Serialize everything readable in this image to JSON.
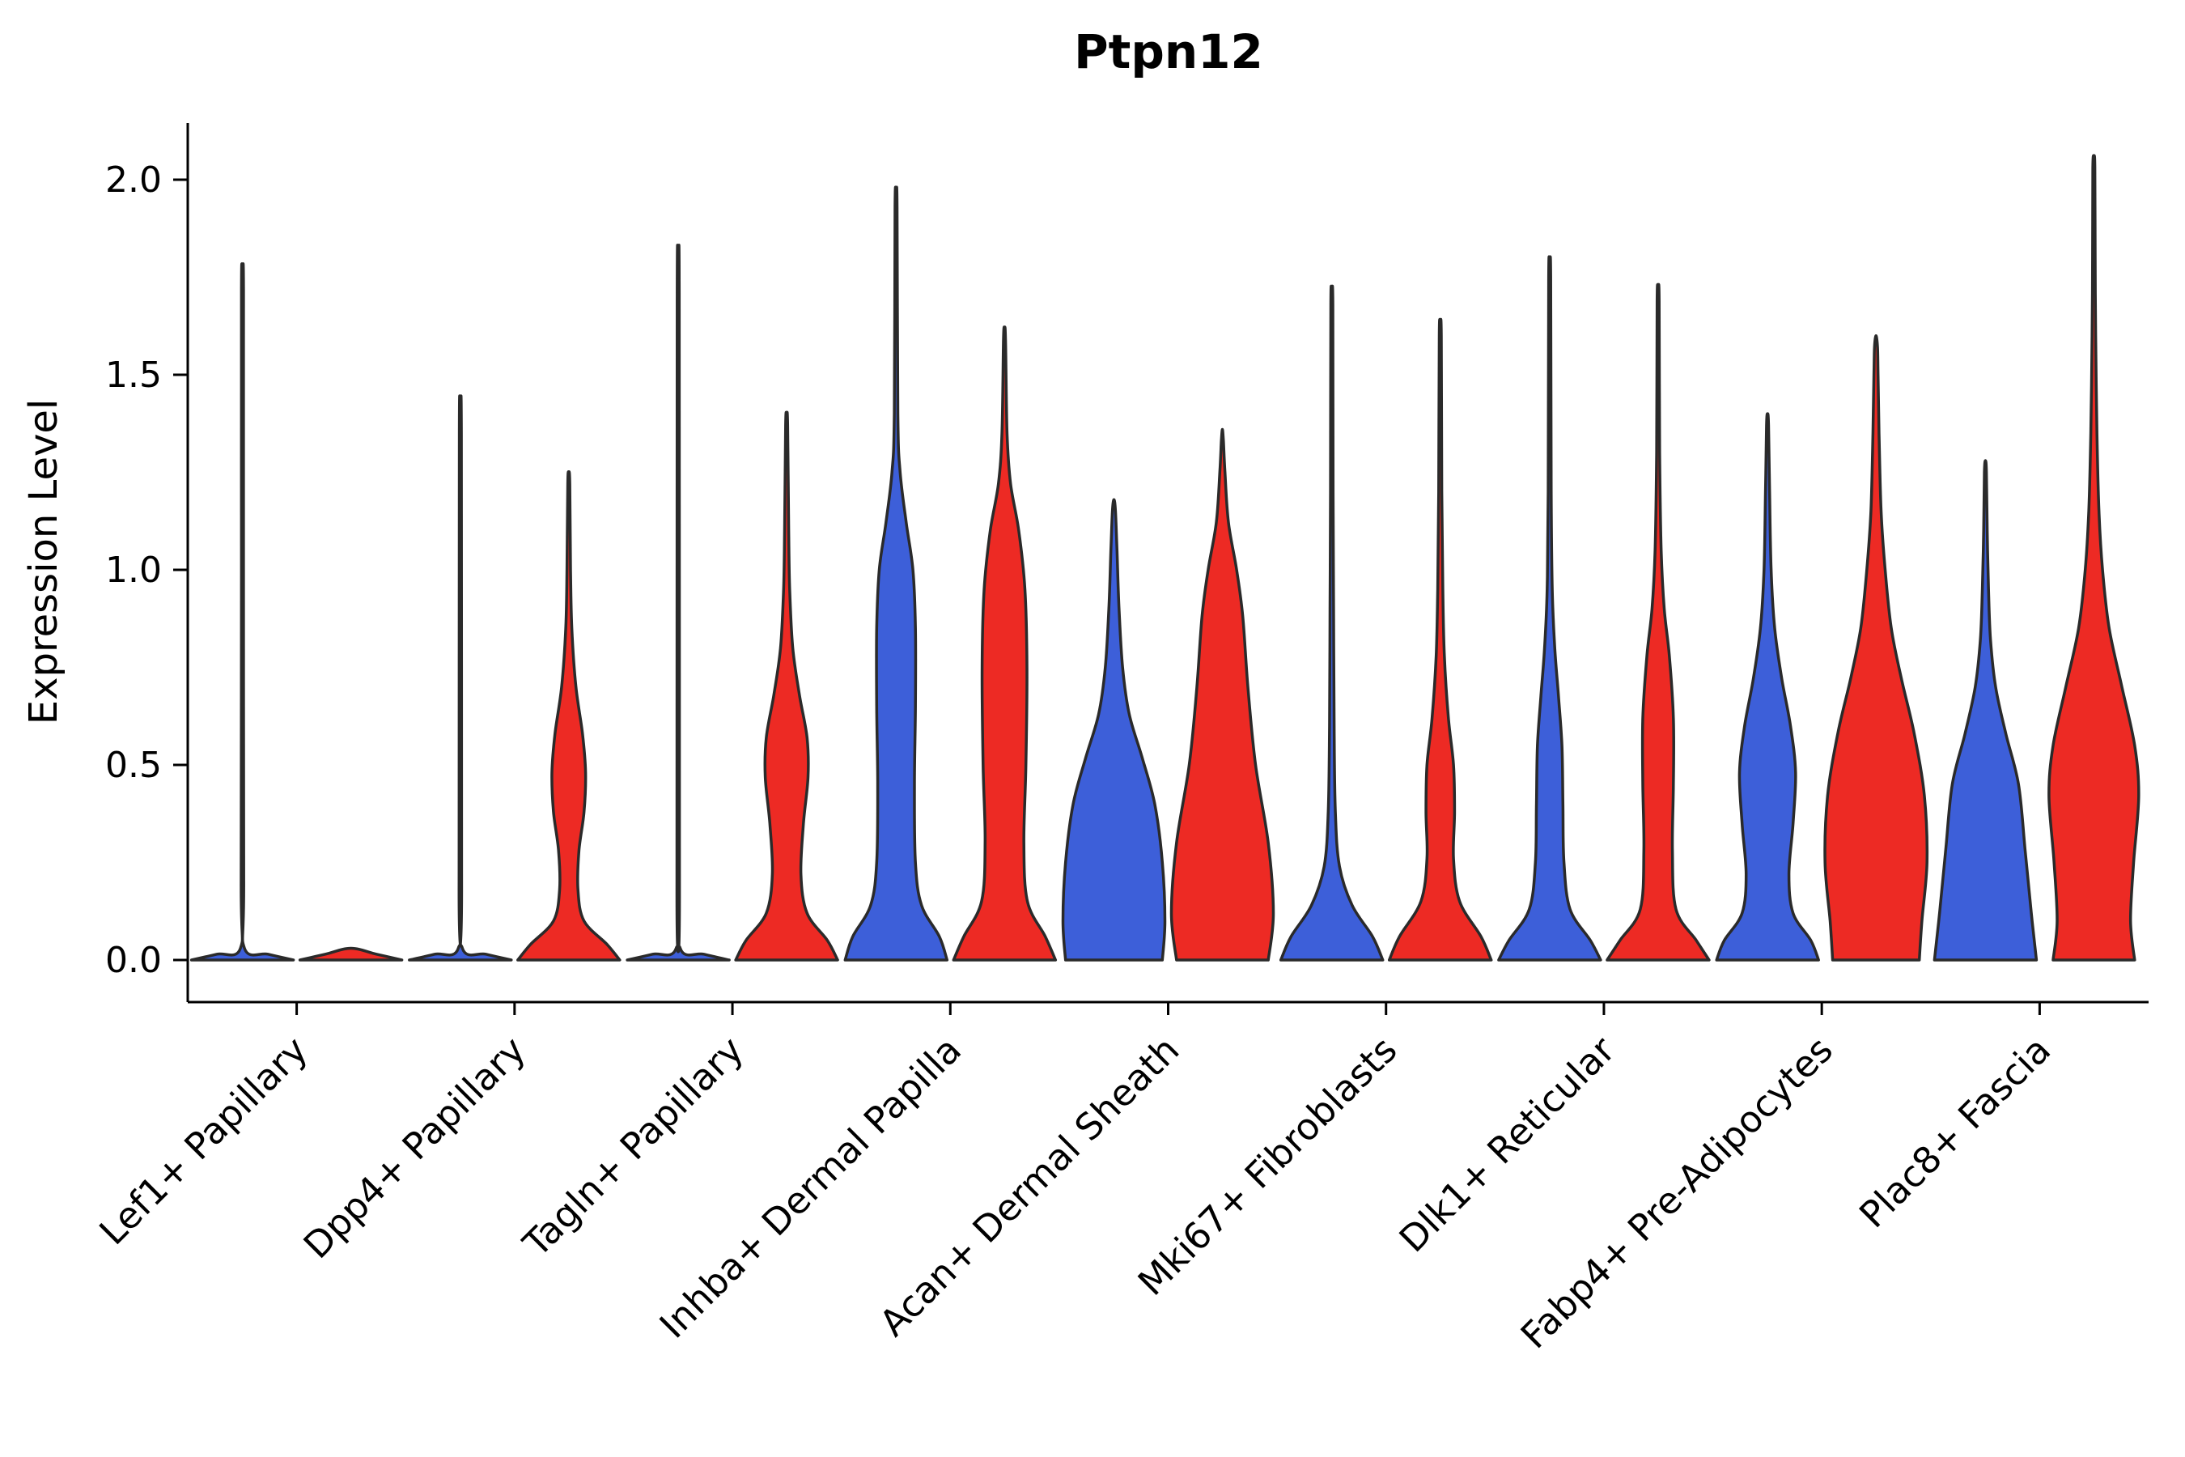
{
  "chart_data": {
    "type": "violin",
    "title": "Ptpn12",
    "ylabel": "Expression Level",
    "ylim": [
      0,
      2.1
    ],
    "yticks": [
      "0.0",
      "0.5",
      "1.0",
      "1.5",
      "2.0"
    ],
    "ytick_values": [
      0.0,
      0.5,
      1.0,
      1.5,
      2.0
    ],
    "grid": false,
    "legend": "none",
    "categories": [
      "Lef1+ Papillary",
      "Dpp4+ Papillary",
      "Tagln+ Papillary",
      "Inhba+ Dermal Papilla",
      "Acan+ Dermal Sheath",
      "Mki67+ Fibroblasts",
      "Dlk1+ Reticular",
      "Fabp4+ Pre-Adipocytes",
      "Plac8+ Fascia"
    ],
    "series": [
      {
        "name": "blue",
        "color": "#3D5FD9",
        "violins": [
          {
            "max": 1.75,
            "profile": [
              [
                0,
                1
              ],
              [
                0.015,
                0.5
              ],
              [
                0.03,
                0.04
              ],
              [
                0.2,
                0.025
              ],
              [
                1.0,
                0.02
              ],
              [
                1.72,
                0.02
              ],
              [
                1.75,
                0
              ]
            ]
          },
          {
            "max": 1.38,
            "profile": [
              [
                0,
                1
              ],
              [
                0.015,
                0.5
              ],
              [
                0.03,
                0.04
              ],
              [
                0.2,
                0.025
              ],
              [
                1.35,
                0.02
              ],
              [
                1.38,
                0
              ]
            ]
          },
          {
            "max": 1.74,
            "profile": [
              [
                0,
                1
              ],
              [
                0.015,
                0.5
              ],
              [
                0.03,
                0.04
              ],
              [
                0.2,
                0.025
              ],
              [
                1.71,
                0.02
              ],
              [
                1.74,
                0
              ]
            ]
          },
          {
            "max": 1.96,
            "profile": [
              [
                0,
                1
              ],
              [
                0.06,
                0.85
              ],
              [
                0.14,
                0.5
              ],
              [
                0.25,
                0.38
              ],
              [
                0.45,
                0.36
              ],
              [
                0.65,
                0.38
              ],
              [
                0.85,
                0.38
              ],
              [
                1.0,
                0.33
              ],
              [
                1.12,
                0.2
              ],
              [
                1.25,
                0.08
              ],
              [
                1.4,
                0.035
              ],
              [
                1.93,
                0.02
              ],
              [
                1.96,
                0
              ]
            ]
          },
          {
            "max": 1.18,
            "profile": [
              [
                0,
                0.95
              ],
              [
                0.1,
                1
              ],
              [
                0.25,
                0.95
              ],
              [
                0.4,
                0.8
              ],
              [
                0.52,
                0.55
              ],
              [
                0.63,
                0.3
              ],
              [
                0.75,
                0.17
              ],
              [
                0.9,
                0.1
              ],
              [
                1.05,
                0.06
              ],
              [
                1.15,
                0.03
              ],
              [
                1.18,
                0
              ]
            ]
          },
          {
            "max": 1.71,
            "profile": [
              [
                0,
                1
              ],
              [
                0.06,
                0.8
              ],
              [
                0.14,
                0.4
              ],
              [
                0.24,
                0.15
              ],
              [
                0.38,
                0.07
              ],
              [
                0.6,
                0.045
              ],
              [
                0.9,
                0.035
              ],
              [
                1.2,
                0.025
              ],
              [
                1.68,
                0.02
              ],
              [
                1.71,
                0
              ]
            ]
          },
          {
            "max": 1.78,
            "profile": [
              [
                0,
                1
              ],
              [
                0.05,
                0.8
              ],
              [
                0.13,
                0.4
              ],
              [
                0.25,
                0.28
              ],
              [
                0.4,
                0.26
              ],
              [
                0.55,
                0.24
              ],
              [
                0.68,
                0.17
              ],
              [
                0.8,
                0.1
              ],
              [
                0.95,
                0.05
              ],
              [
                1.2,
                0.03
              ],
              [
                1.75,
                0.02
              ],
              [
                1.78,
                0
              ]
            ]
          },
          {
            "max": 1.4,
            "profile": [
              [
                0,
                1
              ],
              [
                0.05,
                0.85
              ],
              [
                0.12,
                0.5
              ],
              [
                0.22,
                0.42
              ],
              [
                0.35,
                0.5
              ],
              [
                0.48,
                0.55
              ],
              [
                0.6,
                0.45
              ],
              [
                0.72,
                0.28
              ],
              [
                0.85,
                0.14
              ],
              [
                1.0,
                0.07
              ],
              [
                1.2,
                0.04
              ],
              [
                1.37,
                0.02
              ],
              [
                1.4,
                0
              ]
            ]
          },
          {
            "max": 1.28,
            "profile": [
              [
                0,
                1
              ],
              [
                0.12,
                0.9
              ],
              [
                0.28,
                0.78
              ],
              [
                0.45,
                0.65
              ],
              [
                0.58,
                0.4
              ],
              [
                0.7,
                0.2
              ],
              [
                0.82,
                0.1
              ],
              [
                0.95,
                0.06
              ],
              [
                1.1,
                0.035
              ],
              [
                1.25,
                0.02
              ],
              [
                1.28,
                0
              ]
            ]
          }
        ]
      },
      {
        "name": "red",
        "color": "#ED2A24",
        "violins": [
          {
            "max": 0.03,
            "profile": [
              [
                0,
                1
              ],
              [
                0.015,
                0.5
              ],
              [
                0.03,
                0
              ]
            ]
          },
          {
            "max": 1.25,
            "profile": [
              [
                0,
                1
              ],
              [
                0.04,
                0.75
              ],
              [
                0.1,
                0.3
              ],
              [
                0.18,
                0.18
              ],
              [
                0.28,
                0.2
              ],
              [
                0.38,
                0.3
              ],
              [
                0.48,
                0.33
              ],
              [
                0.58,
                0.27
              ],
              [
                0.7,
                0.14
              ],
              [
                0.85,
                0.06
              ],
              [
                1.0,
                0.035
              ],
              [
                1.22,
                0.02
              ],
              [
                1.25,
                0
              ]
            ]
          },
          {
            "max": 1.4,
            "profile": [
              [
                0,
                1
              ],
              [
                0.05,
                0.8
              ],
              [
                0.12,
                0.4
              ],
              [
                0.22,
                0.28
              ],
              [
                0.35,
                0.33
              ],
              [
                0.47,
                0.42
              ],
              [
                0.57,
                0.4
              ],
              [
                0.68,
                0.25
              ],
              [
                0.8,
                0.12
              ],
              [
                0.95,
                0.06
              ],
              [
                1.1,
                0.04
              ],
              [
                1.37,
                0.02
              ],
              [
                1.4,
                0
              ]
            ]
          },
          {
            "max": 1.62,
            "profile": [
              [
                0,
                1
              ],
              [
                0.06,
                0.8
              ],
              [
                0.15,
                0.45
              ],
              [
                0.3,
                0.38
              ],
              [
                0.5,
                0.42
              ],
              [
                0.75,
                0.44
              ],
              [
                0.95,
                0.4
              ],
              [
                1.1,
                0.28
              ],
              [
                1.22,
                0.12
              ],
              [
                1.35,
                0.05
              ],
              [
                1.59,
                0.02
              ],
              [
                1.62,
                0
              ]
            ]
          },
          {
            "max": 1.36,
            "profile": [
              [
                0,
                0.9
              ],
              [
                0.12,
                1
              ],
              [
                0.3,
                0.9
              ],
              [
                0.5,
                0.65
              ],
              [
                0.7,
                0.5
              ],
              [
                0.88,
                0.4
              ],
              [
                1.0,
                0.28
              ],
              [
                1.12,
                0.12
              ],
              [
                1.25,
                0.05
              ],
              [
                1.33,
                0.02
              ],
              [
                1.36,
                0
              ]
            ]
          },
          {
            "max": 1.63,
            "profile": [
              [
                0,
                1
              ],
              [
                0.06,
                0.8
              ],
              [
                0.15,
                0.38
              ],
              [
                0.26,
                0.26
              ],
              [
                0.38,
                0.28
              ],
              [
                0.5,
                0.26
              ],
              [
                0.62,
                0.16
              ],
              [
                0.78,
                0.08
              ],
              [
                0.95,
                0.05
              ],
              [
                1.2,
                0.03
              ],
              [
                1.6,
                0.02
              ],
              [
                1.63,
                0
              ]
            ]
          },
          {
            "max": 1.72,
            "profile": [
              [
                0,
                1
              ],
              [
                0.05,
                0.75
              ],
              [
                0.13,
                0.35
              ],
              [
                0.28,
                0.28
              ],
              [
                0.45,
                0.3
              ],
              [
                0.62,
                0.3
              ],
              [
                0.78,
                0.22
              ],
              [
                0.9,
                0.12
              ],
              [
                1.05,
                0.06
              ],
              [
                1.3,
                0.03
              ],
              [
                1.69,
                0.02
              ],
              [
                1.72,
                0
              ]
            ]
          },
          {
            "max": 1.6,
            "profile": [
              [
                0,
                0.85
              ],
              [
                0.1,
                0.9
              ],
              [
                0.25,
                1
              ],
              [
                0.42,
                0.95
              ],
              [
                0.58,
                0.75
              ],
              [
                0.72,
                0.5
              ],
              [
                0.85,
                0.3
              ],
              [
                1.0,
                0.18
              ],
              [
                1.15,
                0.1
              ],
              [
                1.35,
                0.06
              ],
              [
                1.5,
                0.04
              ],
              [
                1.57,
                0.03
              ],
              [
                1.6,
                0
              ]
            ]
          },
          {
            "max": 2.06,
            "profile": [
              [
                0,
                0.8
              ],
              [
                0.1,
                0.72
              ],
              [
                0.25,
                0.78
              ],
              [
                0.42,
                0.88
              ],
              [
                0.55,
                0.8
              ],
              [
                0.7,
                0.55
              ],
              [
                0.85,
                0.3
              ],
              [
                1.0,
                0.17
              ],
              [
                1.15,
                0.1
              ],
              [
                1.35,
                0.06
              ],
              [
                1.6,
                0.035
              ],
              [
                1.8,
                0.025
              ],
              [
                2.03,
                0.02
              ],
              [
                2.06,
                0
              ]
            ]
          }
        ]
      }
    ],
    "style": {
      "edge_color": "#2a2a2a",
      "axis_color": "#000000",
      "background": "#ffffff"
    }
  }
}
